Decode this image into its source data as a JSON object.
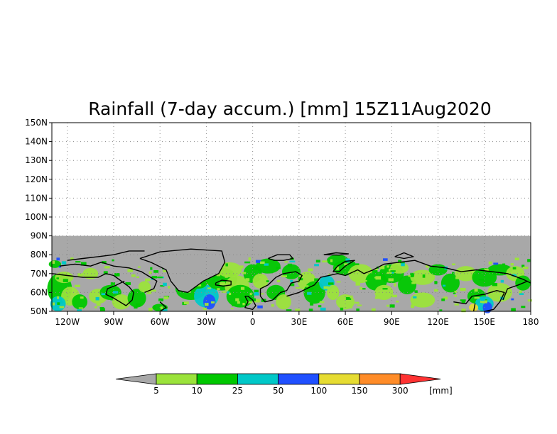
{
  "map": {
    "title": "Rainfall (7-day accum.) [mm] 15Z11Aug2020",
    "lat_labels": [
      "150N",
      "140N",
      "130N",
      "120N",
      "110N",
      "100N",
      "90N",
      "80N",
      "70N",
      "60N",
      "50N"
    ],
    "lon_labels": [
      "120W",
      "90W",
      "60W",
      "30W",
      "0",
      "30E",
      "60E",
      "90E",
      "120E",
      "150E",
      "180"
    ],
    "lon_range": [
      -130,
      180
    ],
    "lat_range": [
      50,
      150
    ],
    "data_lat_max": 90,
    "grid": "dotted"
  },
  "colorbar": {
    "unit": "[mm]",
    "thresholds": [
      "5",
      "10",
      "25",
      "50",
      "100",
      "150",
      "300"
    ],
    "colors": [
      "#a8a8a8",
      "#9be33b",
      "#00c800",
      "#00c8c8",
      "#2050ff",
      "#e6dc32",
      "#ff8c28",
      "#ff3232"
    ]
  },
  "colors": {
    "nodata": "#a8a8a8",
    "coast": "#000000",
    "land_snow": "#a8a8a8",
    "frame": "#000000"
  }
}
